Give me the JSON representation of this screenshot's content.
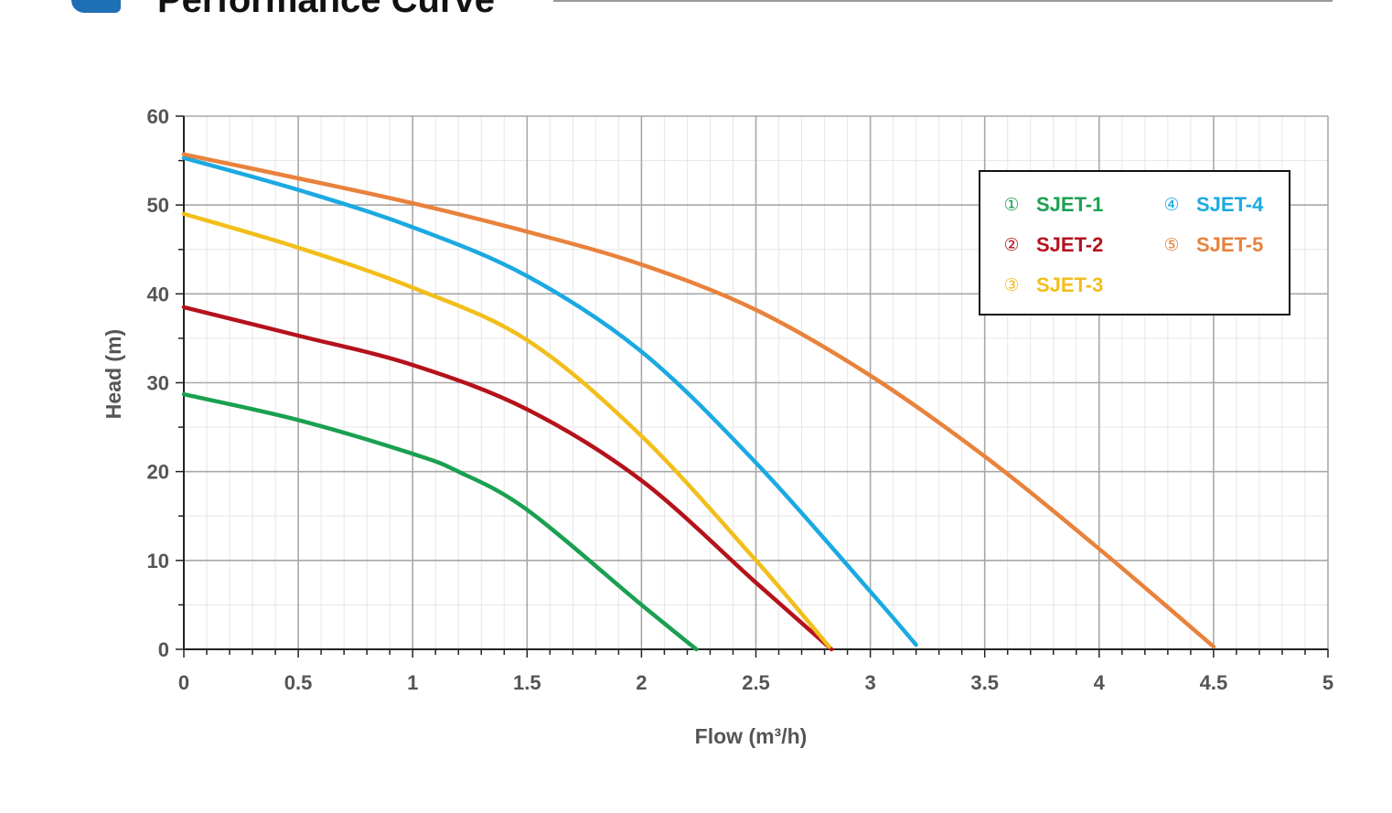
{
  "header": {
    "title": "Performance Curve"
  },
  "chart_data": {
    "type": "line",
    "xlabel": "Flow (m³/h)",
    "ylabel": "Head (m)",
    "xlim": [
      0,
      5
    ],
    "ylim": [
      0,
      60
    ],
    "x_ticks": [
      "0",
      "0.5",
      "1",
      "1.5",
      "2",
      "2.5",
      "3",
      "3.5",
      "4",
      "4.5",
      "5"
    ],
    "y_ticks": [
      "0",
      "10",
      "20",
      "30",
      "40",
      "50",
      "60"
    ],
    "grid": true,
    "legend_position": "top-right",
    "series": [
      {
        "name": "SJET-1",
        "marker": "①",
        "color": "#1aa050",
        "points": [
          [
            0,
            28.7
          ],
          [
            0.5,
            25.8
          ],
          [
            1.0,
            22.0
          ],
          [
            1.2,
            20.0
          ],
          [
            1.5,
            15.7
          ],
          [
            2.0,
            5.0
          ],
          [
            2.24,
            0
          ]
        ]
      },
      {
        "name": "SJET-2",
        "marker": "②",
        "color": "#b5121b",
        "points": [
          [
            0,
            38.5
          ],
          [
            0.5,
            35.3
          ],
          [
            1.0,
            32.0
          ],
          [
            1.5,
            27.0
          ],
          [
            2.0,
            19.0
          ],
          [
            2.5,
            7.5
          ],
          [
            2.83,
            0
          ]
        ]
      },
      {
        "name": "SJET-3",
        "marker": "③",
        "color": "#f2be1a",
        "points": [
          [
            0,
            49.0
          ],
          [
            0.5,
            45.2
          ],
          [
            1.0,
            40.7
          ],
          [
            1.5,
            34.8
          ],
          [
            2.0,
            24.0
          ],
          [
            2.5,
            10.0
          ],
          [
            2.82,
            0.3
          ]
        ]
      },
      {
        "name": "SJET-4",
        "marker": "④",
        "color": "#1ba9e1",
        "points": [
          [
            0,
            55.3
          ],
          [
            0.5,
            51.7
          ],
          [
            1.0,
            47.5
          ],
          [
            1.5,
            42.0
          ],
          [
            2.0,
            33.5
          ],
          [
            2.5,
            21.0
          ],
          [
            3.0,
            6.5
          ],
          [
            3.2,
            0.5
          ]
        ]
      },
      {
        "name": "SJET-5",
        "marker": "⑤",
        "color": "#e8823c",
        "points": [
          [
            0,
            55.7
          ],
          [
            0.5,
            53.0
          ],
          [
            1.0,
            50.2
          ],
          [
            1.5,
            47.0
          ],
          [
            2.0,
            43.3
          ],
          [
            2.5,
            38.2
          ],
          [
            3.0,
            30.8
          ],
          [
            3.5,
            21.7
          ],
          [
            4.0,
            11.3
          ],
          [
            4.5,
            0.3
          ]
        ]
      }
    ]
  }
}
